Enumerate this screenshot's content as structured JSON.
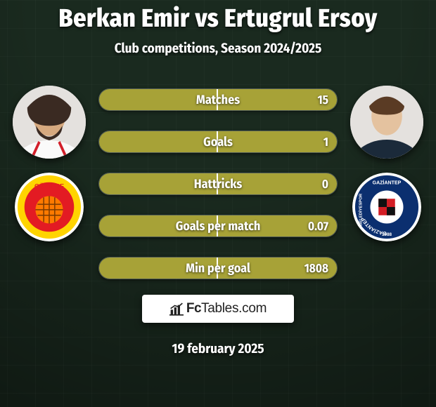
{
  "colors": {
    "background": "#1a2a1f",
    "grid_line": "#ffffff",
    "text": "#ffffff",
    "bar_fill": "#a7a237",
    "bar_divider": "#ffffff",
    "brand_bg": "#ffffff",
    "brand_text": "#222222"
  },
  "header": {
    "player_left": "Berkan Emir",
    "vs": "vs",
    "player_right": "Ertugrul Ersoy",
    "subtitle": "Club competitions, Season 2024/2025"
  },
  "left": {
    "avatar_name": "player-left-avatar",
    "crest_name": "club-left-crest",
    "club": "Göztepe",
    "club_colors": {
      "primary": "#e31b23",
      "secondary": "#ffd400",
      "border": "#ffffff"
    }
  },
  "right": {
    "avatar_name": "player-right-avatar",
    "crest_name": "club-right-crest",
    "club": "Gaziantep",
    "club_colors": {
      "primary": "#0b2f6f",
      "secondary": "#d31e25",
      "border": "#ffffff"
    }
  },
  "stats": [
    {
      "label": "Matches",
      "right_value": "15",
      "left_pct": 0,
      "right_pct": 100
    },
    {
      "label": "Goals",
      "right_value": "1",
      "left_pct": 0,
      "right_pct": 100
    },
    {
      "label": "Hattricks",
      "right_value": "0",
      "left_pct": 50,
      "right_pct": 50
    },
    {
      "label": "Goals per match",
      "right_value": "0.07",
      "left_pct": 0,
      "right_pct": 100
    },
    {
      "label": "Min per goal",
      "right_value": "1808",
      "left_pct": 0,
      "right_pct": 100
    }
  ],
  "brand": {
    "fc": "Fc",
    "rest": "Tables.com"
  },
  "date": "19 february 2025"
}
